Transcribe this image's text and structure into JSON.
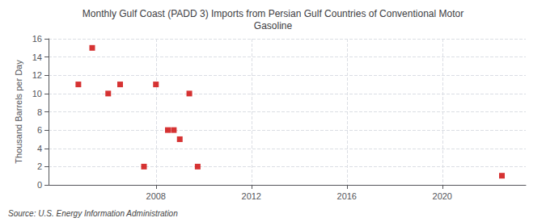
{
  "chart_data": {
    "type": "scatter",
    "title": "Monthly Gulf Coast (PADD 3) Imports from Persian Gulf Countries of Conventional Motor\nGasoline",
    "ylabel": "Thousand Barrels per Day",
    "annotations": [
      "Source: U.S. Energy Information Administration"
    ],
    "x": [
      2004.75,
      2005.33,
      2006.0,
      2006.5,
      2007.5,
      2008.0,
      2008.5,
      2008.75,
      2009.0,
      2009.4,
      2009.75,
      2022.5
    ],
    "values": [
      11,
      15,
      10,
      11,
      2,
      11,
      6,
      6,
      5,
      10,
      2,
      1
    ],
    "color": "#cc0000",
    "marker": "square",
    "xlim": [
      2003.5,
      2023.5
    ],
    "xticks": [
      2008,
      2012,
      2016,
      2020
    ],
    "ylim": [
      0,
      16
    ],
    "yticks": [
      0,
      2,
      4,
      6,
      8,
      10,
      12,
      14,
      16
    ],
    "grid": true
  }
}
